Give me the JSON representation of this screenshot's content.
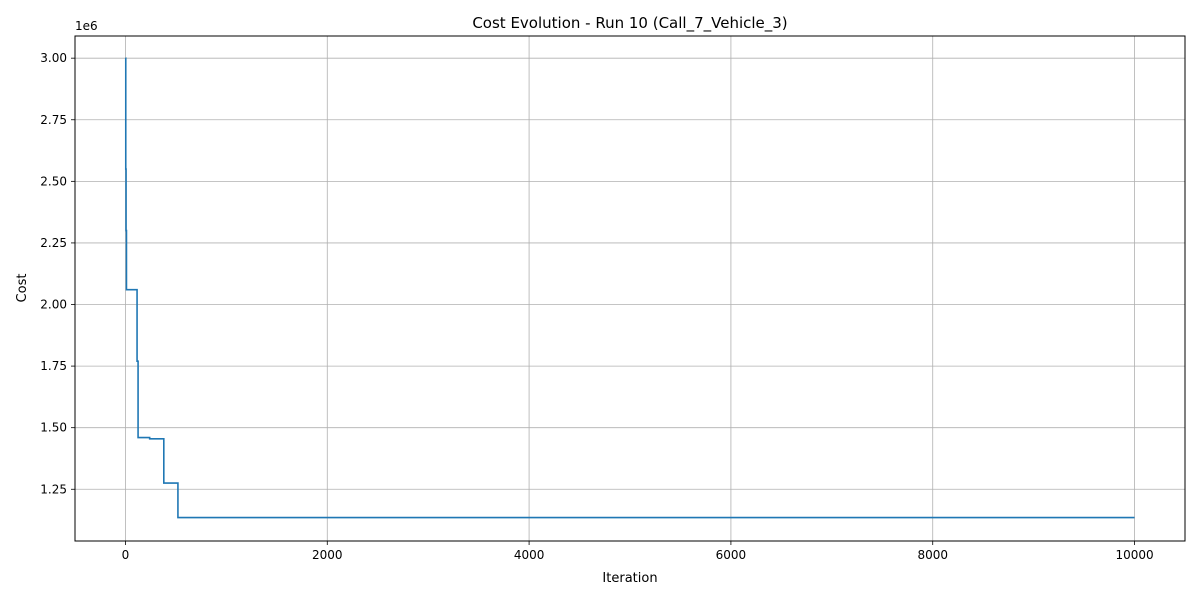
{
  "chart_data": {
    "type": "line",
    "title": "Cost Evolution - Run 10 (Call_7_Vehicle_3)",
    "xlabel": "Iteration",
    "ylabel": "Cost",
    "y_offset_label": "1e6",
    "xlim": [
      -500,
      10500
    ],
    "ylim": [
      1.04,
      3.09
    ],
    "x_ticks": [
      0,
      2000,
      4000,
      6000,
      8000,
      10000
    ],
    "x_tick_labels": [
      "0",
      "2000",
      "4000",
      "6000",
      "8000",
      "10000"
    ],
    "y_ticks": [
      1.25,
      1.5,
      1.75,
      2.0,
      2.25,
      2.5,
      2.75,
      3.0
    ],
    "y_tick_labels": [
      "1.25",
      "1.50",
      "1.75",
      "2.00",
      "2.25",
      "2.50",
      "2.75",
      "3.00"
    ],
    "grid": true,
    "line_color": "#1f77b4",
    "series": [
      {
        "x": [
          0,
          3,
          3,
          6,
          6,
          10,
          10,
          115,
          115,
          125,
          125,
          240,
          240,
          380,
          380,
          520,
          520,
          10000
        ],
        "y": [
          3.0,
          3.0,
          2.55,
          2.55,
          2.3,
          2.3,
          2.06,
          2.06,
          1.77,
          1.77,
          1.46,
          1.46,
          1.455,
          1.455,
          1.275,
          1.275,
          1.135,
          1.135
        ]
      }
    ]
  }
}
